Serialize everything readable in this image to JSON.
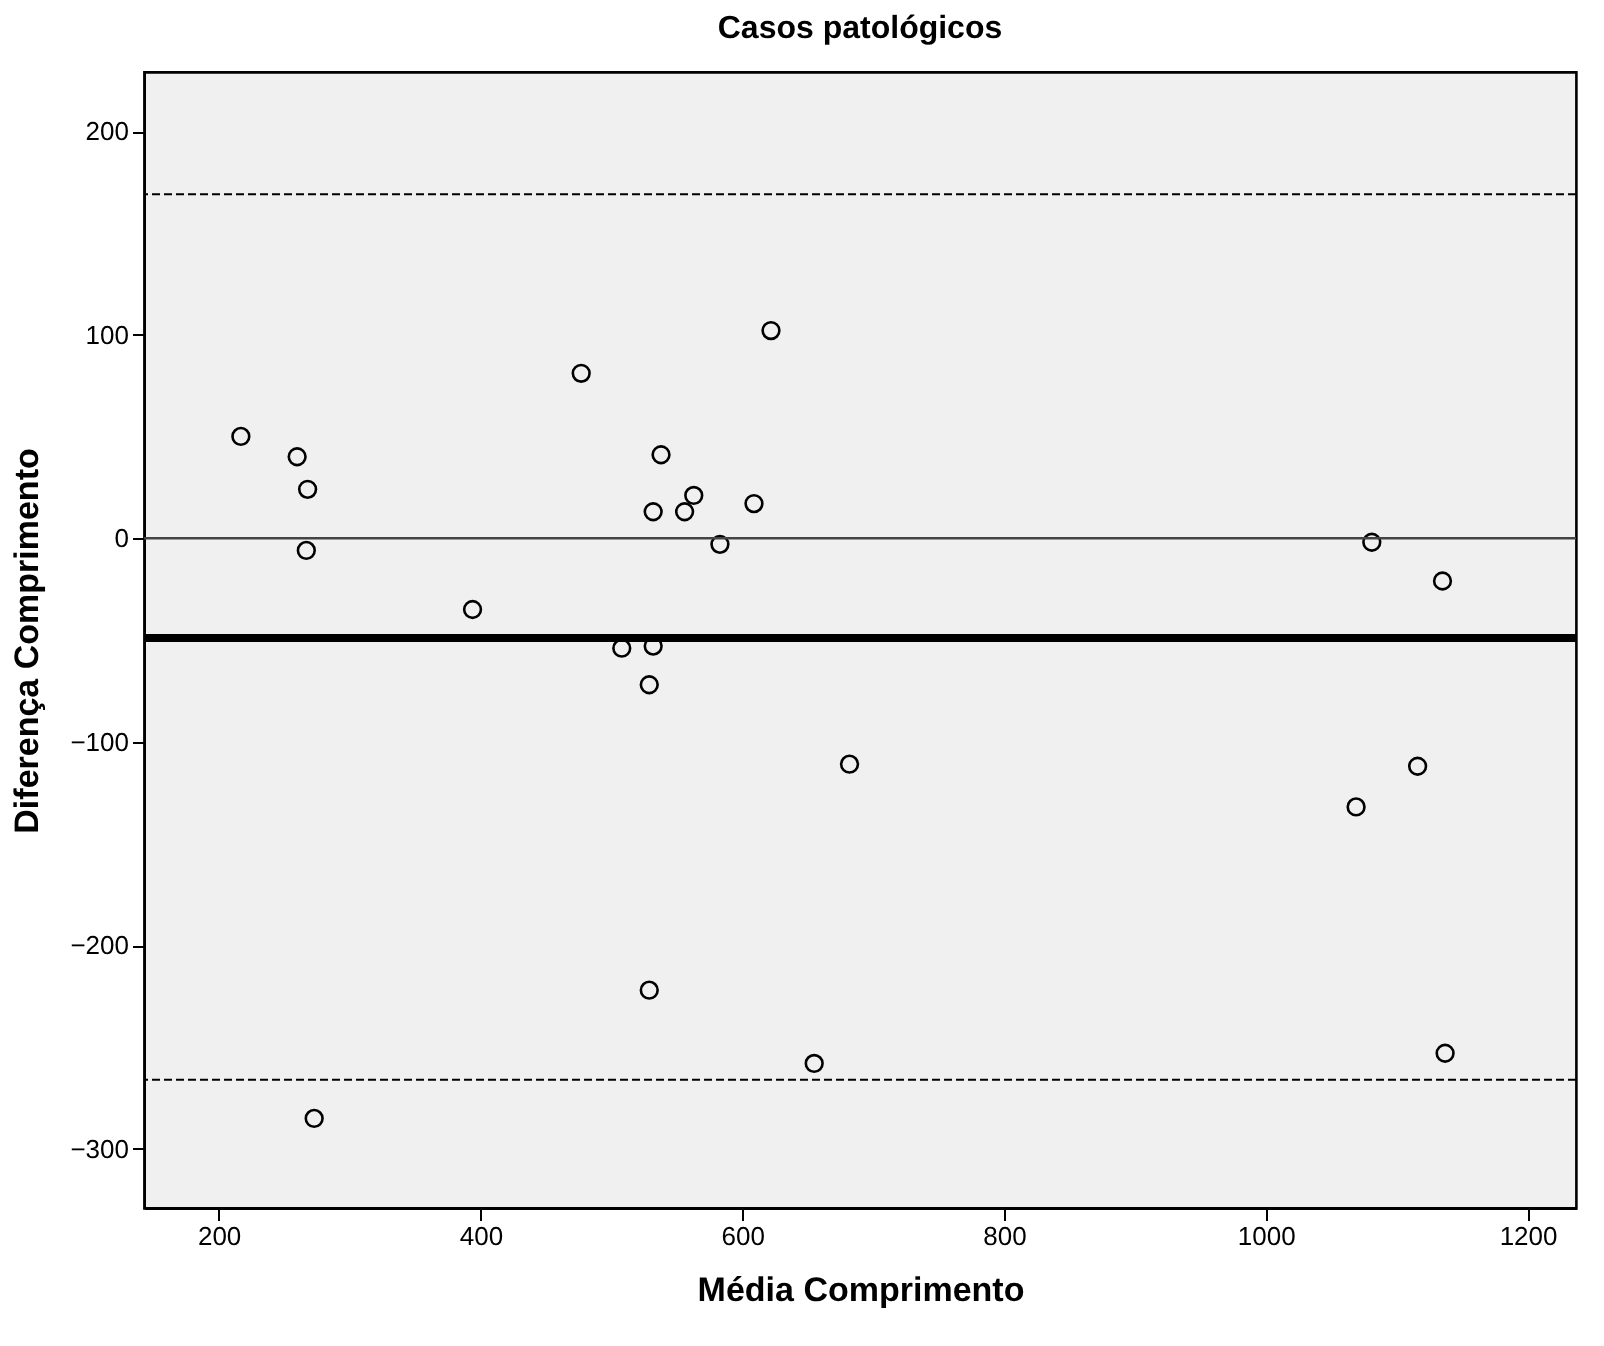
{
  "chart_data": {
    "type": "scatter",
    "title": "Casos patológicos",
    "xlabel": "Média Comprimento",
    "ylabel": "Diferença Comprimento",
    "x": [
      217,
      260,
      268,
      267,
      273,
      394,
      477,
      508,
      529,
      529,
      532,
      532,
      538,
      556,
      563,
      583,
      609,
      622,
      655,
      682,
      1069,
      1081,
      1116,
      1135,
      1137
    ],
    "series": [
      {
        "color": "#000000",
        "values": [
          50,
          40,
          24,
          -6,
          -285,
          -35,
          81,
          -54,
          -72,
          -222,
          13,
          -53,
          41,
          13,
          21,
          -3,
          17,
          102,
          -258,
          -111,
          -132,
          -2,
          -112,
          -21,
          -253
        ]
      }
    ],
    "xlim": [
      143,
      1237
    ],
    "xticks": [
      200,
      400,
      600,
      800,
      1000,
      1200
    ],
    "ylim": [
      -329,
      229
    ],
    "yticks": [
      -300,
      -200,
      -100,
      0,
      100,
      200
    ],
    "ref_lines": [
      {
        "axis": "y",
        "value": 169,
        "color": "#000000",
        "line_style": "dashed"
      },
      {
        "axis": "y",
        "value": 0,
        "color": "#444444",
        "line_style": "solid"
      },
      {
        "axis": "y",
        "value": -49,
        "color": "#000000",
        "line_style": "solid"
      },
      {
        "axis": "y",
        "value": -266,
        "color": "#000000",
        "line_style": "dashed"
      }
    ],
    "grid": false,
    "marker": "circle"
  }
}
